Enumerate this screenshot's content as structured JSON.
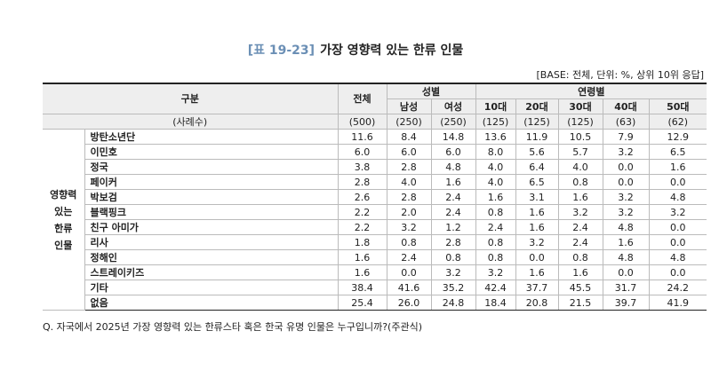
{
  "title": {
    "label": "[표 19-23]",
    "text": "가장 영향력 있는 한류 인물"
  },
  "base_note": "[BASE: 전체, 단위: %, 상위 10위 응답]",
  "table": {
    "header": {
      "category": "구분",
      "total": "전체",
      "gender": "성별",
      "gender_cols": [
        "남성",
        "여성"
      ],
      "age": "연령별",
      "age_cols": [
        "10대",
        "20대",
        "30대",
        "40대",
        "50대"
      ]
    },
    "sample": {
      "label": "(사례수)",
      "values": [
        "(500)",
        "(250)",
        "(250)",
        "(125)",
        "(125)",
        "(125)",
        "(63)",
        "(62)"
      ]
    },
    "group_label": [
      "영향력",
      "있는",
      "한류",
      "인물"
    ],
    "rows": [
      [
        "방탄소년단",
        "11.6",
        "8.4",
        "14.8",
        "13.6",
        "11.9",
        "10.5",
        "7.9",
        "12.9"
      ],
      [
        "이민호",
        "6.0",
        "6.0",
        "6.0",
        "8.0",
        "5.6",
        "5.7",
        "3.2",
        "6.5"
      ],
      [
        "정국",
        "3.8",
        "2.8",
        "4.8",
        "4.0",
        "6.4",
        "4.0",
        "0.0",
        "1.6"
      ],
      [
        "페이커",
        "2.8",
        "4.0",
        "1.6",
        "4.0",
        "6.5",
        "0.8",
        "0.0",
        "0.0"
      ],
      [
        "박보검",
        "2.6",
        "2.8",
        "2.4",
        "1.6",
        "3.1",
        "1.6",
        "3.2",
        "4.8"
      ],
      [
        "블랙핑크",
        "2.2",
        "2.0",
        "2.4",
        "0.8",
        "1.6",
        "3.2",
        "3.2",
        "3.2"
      ],
      [
        "친구 아미가",
        "2.2",
        "3.2",
        "1.2",
        "2.4",
        "1.6",
        "2.4",
        "4.8",
        "0.0"
      ],
      [
        "리사",
        "1.8",
        "0.8",
        "2.8",
        "0.8",
        "3.2",
        "2.4",
        "1.6",
        "0.0"
      ],
      [
        "정해인",
        "1.6",
        "2.4",
        "0.8",
        "0.8",
        "0.0",
        "0.8",
        "4.8",
        "4.8"
      ],
      [
        "스트레이키즈",
        "1.6",
        "0.0",
        "3.2",
        "3.2",
        "1.6",
        "1.6",
        "0.0",
        "0.0"
      ],
      [
        "기타",
        "38.4",
        "41.6",
        "35.2",
        "42.4",
        "37.7",
        "45.5",
        "31.7",
        "24.2"
      ],
      [
        "없음",
        "25.4",
        "26.0",
        "24.8",
        "18.4",
        "20.8",
        "21.5",
        "39.7",
        "41.9"
      ]
    ]
  },
  "footnote": "Q. 자국에서 2025년 가장 영향력 있는 한류스타 혹은 한국 유명 인물은 누구입니까?(주관식)"
}
